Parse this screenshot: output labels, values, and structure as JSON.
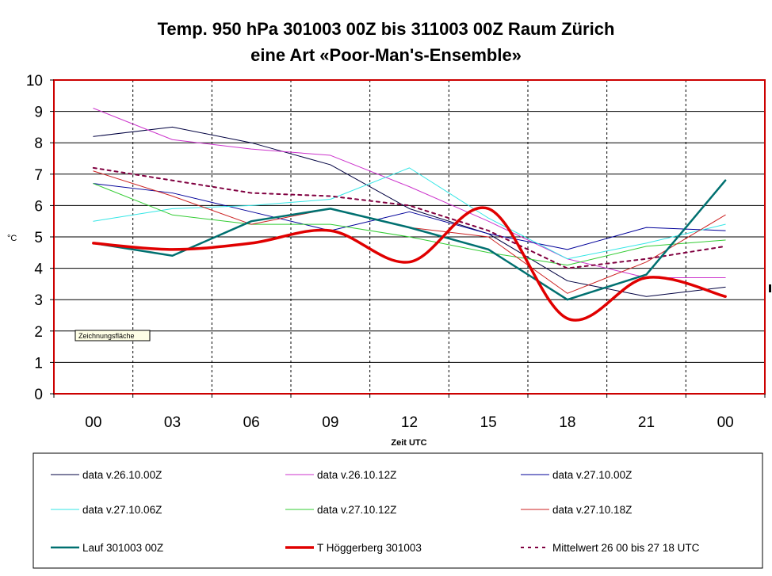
{
  "chart_data": {
    "type": "line",
    "title": "Temp. 950 hPa 301003 00Z bis 311003 00Z Raum Zürich",
    "subtitle": "eine Art «Poor-Man's-Ensemble»",
    "xlabel": "Zeit UTC",
    "ylabel": "°C",
    "categories": [
      "00",
      "03",
      "06",
      "09",
      "12",
      "15",
      "18",
      "21",
      "00"
    ],
    "ylim": [
      0,
      10
    ],
    "yticks": [
      "0",
      "1",
      "2",
      "3",
      "4",
      "5",
      "6",
      "7",
      "8",
      "9",
      "10"
    ],
    "grid": true,
    "legend_position": "bottom",
    "tooltip": "Zeichnungsfläche",
    "series": [
      {
        "name": "data v.26.10.00Z",
        "color": "#000040",
        "values": [
          8.2,
          8.5,
          8.0,
          7.3,
          5.9,
          5.1,
          3.6,
          3.1,
          3.4
        ]
      },
      {
        "name": "data v.26.10.12Z",
        "color": "#cc33cc",
        "values": [
          9.1,
          8.1,
          7.8,
          7.6,
          6.6,
          5.5,
          4.3,
          3.7,
          3.7
        ]
      },
      {
        "name": "data v.27.10.00Z",
        "color": "#000099",
        "values": [
          6.7,
          6.4,
          5.8,
          5.2,
          5.8,
          5.1,
          4.6,
          5.3,
          5.2
        ]
      },
      {
        "name": "data v.27.10.06Z",
        "color": "#33e6e6",
        "values": [
          5.5,
          5.9,
          6.0,
          6.2,
          7.2,
          5.6,
          4.3,
          4.8,
          5.4
        ]
      },
      {
        "name": "data v.27.10.12Z",
        "color": "#33cc33",
        "values": [
          6.7,
          5.7,
          5.4,
          5.4,
          5.0,
          4.5,
          4.1,
          4.7,
          4.9
        ]
      },
      {
        "name": "data v.27.10.18Z",
        "color": "#cc2222",
        "values": [
          7.1,
          6.3,
          5.4,
          5.9,
          5.3,
          5.0,
          3.2,
          4.2,
          5.7
        ]
      },
      {
        "name": "Lauf 301003 00Z",
        "color": "#007070",
        "values": [
          4.8,
          4.4,
          5.5,
          5.9,
          5.3,
          4.6,
          3.0,
          3.8,
          6.8
        ]
      },
      {
        "name": "T Höggerberg 301003",
        "color": "#e00000",
        "values": [
          4.8,
          4.6,
          4.8,
          5.2,
          4.2,
          5.9,
          2.4,
          3.7,
          3.1
        ]
      },
      {
        "name": "Mittelwert 26 00 bis 27 18 UTC",
        "color": "#800040",
        "values": [
          7.2,
          6.8,
          6.4,
          6.3,
          6.0,
          5.2,
          4.0,
          4.3,
          4.7
        ]
      }
    ]
  }
}
